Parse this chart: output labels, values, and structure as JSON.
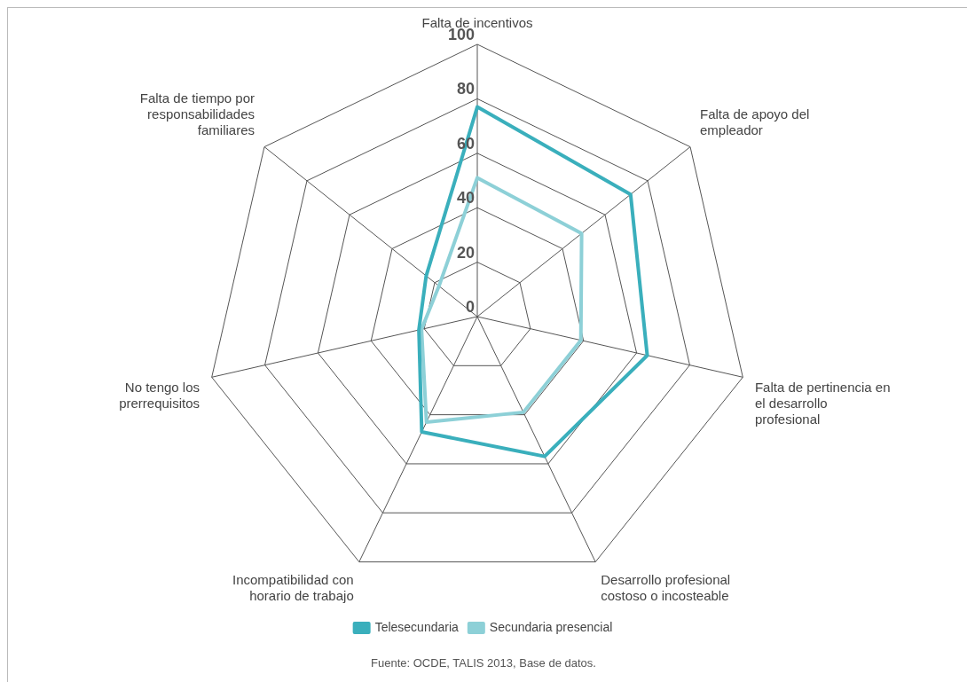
{
  "chart_data": {
    "type": "radar",
    "categories": [
      "Falta de incentivos",
      "Falta de apoyo del empleador",
      "Falta de pertinencia en el desarrollo profesional",
      "Desarrollo profesional costoso o incosteable",
      "Incompatibilidad con horario de trabajo",
      "No tengo los prerrequisitos",
      "Falta de tiempo por responsabilidades familiares"
    ],
    "series": [
      {
        "name": "Telesecundaria",
        "color": "#3aafbc",
        "values": [
          77,
          72,
          64,
          57,
          47,
          22,
          24
        ]
      },
      {
        "name": "Secundaria presencial",
        "color": "#8dd0d7",
        "values": [
          51,
          49,
          39,
          39,
          43,
          21,
          18
        ]
      }
    ],
    "ylim": [
      0,
      100
    ],
    "yticks": [
      0,
      20,
      40,
      60,
      80,
      100
    ],
    "legend": "bottom",
    "grid": true,
    "annotations": [
      "Fuente: OCDE, TALIS 2013, Base de datos."
    ]
  }
}
